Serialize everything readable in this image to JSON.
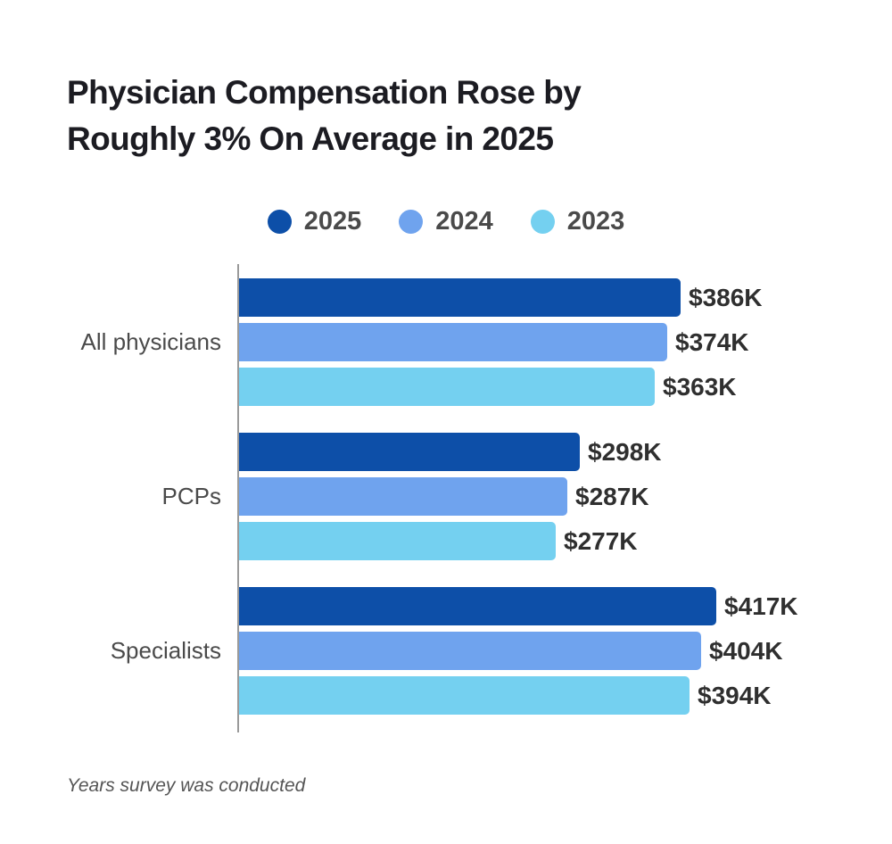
{
  "title": {
    "line1": "Physician Compensation Rose by",
    "line2": "Roughly 3% On Average in 2025"
  },
  "footnote": "Years survey was conducted",
  "colors": {
    "title_text": "#1c1c22",
    "category_text": "#4a4a4a",
    "value_text": "#2f2f2f",
    "axis_line": "#9a9a9a",
    "background": "#ffffff"
  },
  "chart_data": {
    "type": "bar",
    "orientation": "horizontal",
    "title": "Physician Compensation Rose by Roughly 3% On Average in 2025",
    "xlabel": "",
    "ylabel": "",
    "legend_position": "top-center",
    "value_axis_visible": false,
    "grid": false,
    "categories": [
      "All physicians",
      "PCPs",
      "Specialists"
    ],
    "series": [
      {
        "name": "2025",
        "color": "#0d4fa8",
        "values": [
          386,
          298,
          417
        ],
        "labels": [
          "$386K",
          "$298K",
          "$417K"
        ]
      },
      {
        "name": "2024",
        "color": "#6fa3ee",
        "values": [
          374,
          287,
          404
        ],
        "labels": [
          "$374K",
          "$287K",
          "$404K"
        ]
      },
      {
        "name": "2023",
        "color": "#74d0f0",
        "values": [
          363,
          277,
          394
        ],
        "labels": [
          "$363K",
          "$277K",
          "$394K"
        ]
      }
    ]
  }
}
